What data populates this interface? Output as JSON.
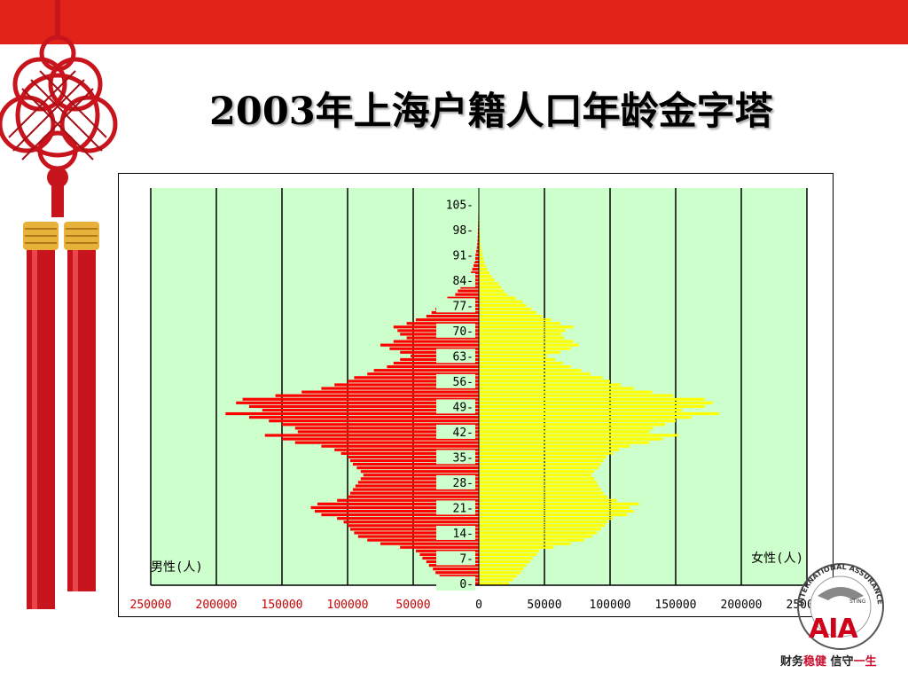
{
  "slide": {
    "title": "2003年上海户籍人口年龄金字塔",
    "slogan_part1": "财务",
    "slogan_part2": "稳健",
    "slogan_part3": " 信守",
    "slogan_part4": "一生",
    "logo_text": "AIA",
    "logo_ring_text": "INTERNATIONAL ASSURANCE",
    "logo_ring_text2": "STING",
    "colors": {
      "top_bar": "#e2231a",
      "knot": "#d4141c",
      "plot_bg": "#ccffcc",
      "male": "#ff0000",
      "female": "#ffff00",
      "logo": "#d0021b"
    }
  },
  "chart_data": {
    "type": "bar",
    "orientation": "horizontal-pyramid",
    "title": "",
    "left_label": "男性(人)",
    "right_label": "女性(人)",
    "x_ticks_left": [
      "250000",
      "200000",
      "150000",
      "100000",
      "50000"
    ],
    "x_tick_zero": "0",
    "x_ticks_right": [
      "50000",
      "100000",
      "150000",
      "200000",
      "250000"
    ],
    "y_ticks": [
      "0-",
      "7-",
      "14-",
      "21-",
      "28-",
      "35-",
      "42-",
      "49-",
      "56-",
      "63-",
      "70-",
      "77-",
      "84-",
      "91-",
      "98-",
      "105-"
    ],
    "xlim": [
      -250000,
      250000
    ],
    "ages": [
      0,
      1,
      2,
      3,
      4,
      5,
      6,
      7,
      8,
      9,
      10,
      11,
      12,
      13,
      14,
      15,
      16,
      17,
      18,
      19,
      20,
      21,
      22,
      23,
      24,
      25,
      26,
      27,
      28,
      29,
      30,
      31,
      32,
      33,
      34,
      35,
      36,
      37,
      38,
      39,
      40,
      41,
      42,
      43,
      44,
      45,
      46,
      47,
      48,
      49,
      50,
      51,
      52,
      53,
      54,
      55,
      56,
      57,
      58,
      59,
      60,
      61,
      62,
      63,
      64,
      65,
      66,
      67,
      68,
      69,
      70,
      71,
      72,
      73,
      74,
      75,
      76,
      77,
      78,
      79,
      80,
      81,
      82,
      83,
      84,
      85,
      86,
      87,
      88,
      89,
      90,
      91,
      92,
      93,
      94,
      95,
      96,
      97,
      98,
      99,
      100,
      101,
      102,
      103,
      104,
      105,
      106,
      107,
      108,
      109
    ],
    "series": [
      {
        "name": "男性(人)",
        "values": [
          25000,
          28000,
          30000,
          33000,
          35000,
          38000,
          40000,
          43000,
          45000,
          48000,
          60000,
          75000,
          85000,
          92000,
          95000,
          98000,
          100000,
          103000,
          108000,
          120000,
          125000,
          128000,
          123000,
          108000,
          100000,
          98000,
          96000,
          94000,
          92000,
          90000,
          88000,
          90000,
          93000,
          96000,
          98000,
          100000,
          105000,
          110000,
          120000,
          140000,
          150000,
          163000,
          138000,
          140000,
          150000,
          160000,
          175000,
          193000,
          165000,
          175000,
          185000,
          180000,
          155000,
          135000,
          120000,
          110000,
          100000,
          95000,
          85000,
          80000,
          70000,
          65000,
          60000,
          52000,
          60000,
          68000,
          75000,
          65000,
          55000,
          60000,
          62000,
          65000,
          55000,
          48000,
          40000,
          36000,
          33000,
          29000,
          27000,
          24000,
          18000,
          16000,
          14000,
          12000,
          10000,
          8000,
          6000,
          5000,
          4000,
          3500,
          3000,
          2500,
          2000,
          1500,
          1200,
          1000,
          900,
          800,
          700,
          600,
          500,
          450,
          400,
          350,
          300,
          280,
          260,
          240,
          220,
          200
        ]
      },
      {
        "name": "女性(人)",
        "values": [
          23000,
          26000,
          29000,
          32000,
          34000,
          36000,
          39000,
          41000,
          44000,
          46000,
          57000,
          70000,
          80000,
          86000,
          90000,
          93000,
          96000,
          98000,
          102000,
          113000,
          118000,
          115000,
          122000,
          105000,
          98000,
          95000,
          93000,
          91000,
          90000,
          88000,
          86000,
          88000,
          91000,
          93000,
          95000,
          97000,
          102000,
          107000,
          115000,
          130000,
          140000,
          152000,
          130000,
          133000,
          142000,
          150000,
          162000,
          183000,
          155000,
          172000,
          178000,
          172000,
          148000,
          132000,
          118000,
          108000,
          100000,
          94000,
          85000,
          78000,
          70000,
          64000,
          58000,
          52000,
          62000,
          70000,
          76000,
          72000,
          65000,
          63000,
          66000,
          72000,
          62000,
          55000,
          48000,
          44000,
          40000,
          36000,
          33000,
          28000,
          22000,
          19000,
          17000,
          15000,
          12000,
          10000,
          8000,
          6500,
          5000,
          4200,
          3500,
          2900,
          2300,
          1800,
          1400,
          1100,
          900,
          800,
          700,
          600,
          500,
          450,
          400,
          350,
          300,
          280,
          260,
          240,
          220,
          200
        ]
      }
    ],
    "grid": true,
    "legend": "none"
  }
}
